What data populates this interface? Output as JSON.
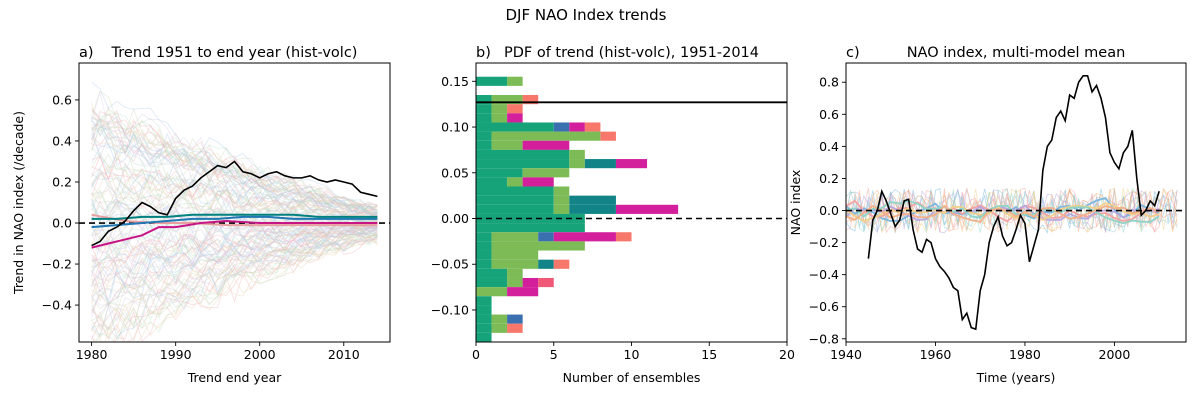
{
  "figure": {
    "title": "DJF NAO Index trends"
  },
  "chart_data": [
    {
      "type": "line",
      "panel_letter": "a)",
      "title": "Trend 1951 to end year (hist-volc)",
      "xlabel": "Trend end year",
      "ylabel": "Trend in NAO index (/decade)",
      "xlim": [
        1978.5,
        2015.5
      ],
      "ylim": [
        -0.58,
        0.78
      ],
      "xticks": [
        1980,
        1990,
        2000,
        2010
      ],
      "yticks": [
        -0.4,
        -0.2,
        0.0,
        0.2,
        0.4,
        0.6
      ],
      "grid": false,
      "ensemble_members": 120,
      "ensemble_color": "#b0b8c8",
      "zero_line": 0,
      "series": [
        {
          "color": "#000000",
          "x": [
            1980,
            1981,
            1982,
            1983,
            1984,
            1985,
            1986,
            1987,
            1988,
            1989,
            1990,
            1991,
            1992,
            1993,
            1994,
            1995,
            1996,
            1997,
            1998,
            1999,
            2000,
            2001,
            2002,
            2003,
            2004,
            2005,
            2006,
            2007,
            2008,
            2009,
            2010,
            2011,
            2012,
            2013,
            2014
          ],
          "values": [
            -0.11,
            -0.09,
            -0.04,
            -0.02,
            0.01,
            0.06,
            0.1,
            0.08,
            0.05,
            0.04,
            0.12,
            0.16,
            0.18,
            0.22,
            0.25,
            0.28,
            0.27,
            0.3,
            0.25,
            0.24,
            0.22,
            0.24,
            0.25,
            0.23,
            0.22,
            0.22,
            0.23,
            0.21,
            0.2,
            0.21,
            0.2,
            0.19,
            0.15,
            0.14,
            0.13
          ]
        },
        {
          "color": "#008080",
          "x": [
            1980,
            1983,
            1986,
            1989,
            1992,
            1995,
            1998,
            2001,
            2004,
            2007,
            2010,
            2014
          ],
          "values": [
            0.02,
            0.02,
            0.03,
            0.03,
            0.04,
            0.04,
            0.04,
            0.04,
            0.04,
            0.03,
            0.03,
            0.03
          ]
        },
        {
          "color": "#1f77b4",
          "x": [
            1980,
            1983,
            1986,
            1989,
            1992,
            1995,
            1998,
            2001,
            2004,
            2007,
            2010,
            2014
          ],
          "values": [
            -0.02,
            -0.01,
            0.0,
            0.01,
            0.02,
            0.02,
            0.03,
            0.03,
            0.02,
            0.02,
            0.02,
            0.02
          ]
        },
        {
          "color": "#c71585",
          "x": [
            1980,
            1982,
            1984,
            1986,
            1988,
            1990,
            1993,
            1996,
            2000,
            2004,
            2008,
            2014
          ],
          "values": [
            -0.12,
            -0.1,
            -0.08,
            -0.06,
            -0.02,
            -0.02,
            0.0,
            0.01,
            0.0,
            0.0,
            0.0,
            0.0
          ]
        },
        {
          "color": "#e8a0a0",
          "x": [
            1980,
            1984,
            1988,
            1992,
            1996,
            2000,
            2004,
            2008,
            2014
          ],
          "values": [
            0.04,
            0.01,
            0.0,
            0.0,
            -0.01,
            -0.01,
            -0.01,
            -0.01,
            -0.01
          ]
        }
      ]
    },
    {
      "type": "bar",
      "orientation": "horizontal",
      "stacked": true,
      "panel_letter": "b)",
      "title": "PDF of trend (hist-volc), 1951-2014",
      "xlabel": "Number of ensembles",
      "ylabel": "",
      "xlim": [
        0,
        20
      ],
      "ylim": [
        -0.135,
        0.17
      ],
      "xticks": [
        0,
        5,
        10,
        15,
        20
      ],
      "yticks": [
        -0.1,
        -0.05,
        0.0,
        0.05,
        0.1,
        0.15
      ],
      "bin_width": 0.01,
      "observed_line": 0.127,
      "zero_line": 0,
      "colors": [
        "#16a37a",
        "#7cbb55",
        "#3a6fb0",
        "#128488",
        "#d31f9c",
        "#ef5977",
        "#f7776b"
      ],
      "bins": [
        {
          "y": 0.15,
          "segments": [
            2,
            1,
            0,
            0,
            0,
            0,
            0
          ]
        },
        {
          "y": 0.13,
          "segments": [
            1,
            2,
            0,
            0,
            0,
            0,
            1
          ]
        },
        {
          "y": 0.12,
          "segments": [
            1,
            1,
            0,
            0,
            0,
            0,
            1
          ]
        },
        {
          "y": 0.11,
          "segments": [
            1,
            1,
            0,
            0,
            1,
            0,
            0
          ]
        },
        {
          "y": 0.1,
          "segments": [
            5,
            0,
            1,
            0,
            1,
            0,
            1
          ]
        },
        {
          "y": 0.09,
          "segments": [
            1,
            7,
            0,
            0,
            0,
            0,
            1
          ]
        },
        {
          "y": 0.08,
          "segments": [
            1,
            2,
            0,
            0,
            3,
            0,
            0
          ]
        },
        {
          "y": 0.07,
          "segments": [
            6,
            1,
            0,
            0,
            0,
            0,
            0
          ]
        },
        {
          "y": 0.06,
          "segments": [
            6,
            1,
            0,
            2,
            2,
            0,
            0
          ]
        },
        {
          "y": 0.05,
          "segments": [
            3,
            3,
            0,
            0,
            0,
            0,
            0
          ]
        },
        {
          "y": 0.04,
          "segments": [
            2,
            1,
            0,
            0,
            2,
            0,
            0
          ]
        },
        {
          "y": 0.03,
          "segments": [
            5,
            1,
            0,
            0,
            0,
            0,
            0
          ]
        },
        {
          "y": 0.02,
          "segments": [
            5,
            1,
            0,
            3,
            0,
            0,
            0
          ]
        },
        {
          "y": 0.01,
          "segments": [
            5,
            1,
            0,
            3,
            4,
            0,
            0
          ]
        },
        {
          "y": 0.0,
          "segments": [
            7,
            0,
            0,
            0,
            0,
            0,
            0
          ]
        },
        {
          "y": -0.01,
          "segments": [
            7,
            0,
            0,
            0,
            0,
            0,
            0
          ]
        },
        {
          "y": -0.02,
          "segments": [
            1,
            3,
            1,
            0,
            4,
            0,
            1
          ]
        },
        {
          "y": -0.03,
          "segments": [
            1,
            6,
            0,
            0,
            0,
            0,
            0
          ]
        },
        {
          "y": -0.04,
          "segments": [
            1,
            3,
            0,
            0,
            0,
            0,
            0
          ]
        },
        {
          "y": -0.05,
          "segments": [
            1,
            3,
            0,
            1,
            0,
            0,
            1
          ]
        },
        {
          "y": -0.06,
          "segments": [
            2,
            1,
            0,
            0,
            0,
            0,
            0
          ]
        },
        {
          "y": -0.07,
          "segments": [
            2,
            1,
            0,
            0,
            1,
            1,
            0
          ]
        },
        {
          "y": -0.08,
          "segments": [
            0,
            2,
            0,
            0,
            2,
            0,
            0
          ]
        },
        {
          "y": -0.09,
          "segments": [
            1,
            0,
            0,
            0,
            0,
            0,
            0
          ]
        },
        {
          "y": -0.1,
          "segments": [
            1,
            0,
            0,
            0,
            0,
            0,
            0
          ]
        },
        {
          "y": -0.11,
          "segments": [
            1,
            1,
            1,
            0,
            0,
            0,
            0
          ]
        },
        {
          "y": -0.12,
          "segments": [
            1,
            1,
            0,
            0,
            0,
            0,
            1
          ]
        },
        {
          "y": -0.13,
          "segments": [
            1,
            0,
            0,
            0,
            0,
            0,
            0
          ]
        }
      ]
    },
    {
      "type": "line",
      "panel_letter": "c)",
      "title": "NAO index, multi-model mean",
      "xlabel": "Time (years)",
      "ylabel": "NAO index",
      "xlim": [
        1940,
        2016
      ],
      "ylim": [
        -0.82,
        0.92
      ],
      "xticks": [
        1940,
        1960,
        1980,
        2000
      ],
      "yticks": [
        -0.8,
        -0.6,
        -0.4,
        -0.2,
        0.0,
        0.2,
        0.4,
        0.6,
        0.8
      ],
      "grid": false,
      "zero_line": 0,
      "series": [
        {
          "color": "#000000",
          "x": [
            1945,
            1946,
            1947,
            1948,
            1949,
            1950,
            1951,
            1952,
            1953,
            1954,
            1955,
            1956,
            1957,
            1958,
            1959,
            1960,
            1961,
            1962,
            1963,
            1964,
            1965,
            1966,
            1967,
            1968,
            1969,
            1970,
            1971,
            1972,
            1973,
            1974,
            1975,
            1976,
            1977,
            1978,
            1979,
            1980,
            1981,
            1982,
            1983,
            1984,
            1985,
            1986,
            1987,
            1988,
            1989,
            1990,
            1991,
            1992,
            1993,
            1994,
            1995,
            1996,
            1997,
            1998,
            1999,
            2000,
            2001,
            2002,
            2003,
            2004,
            2005,
            2006,
            2007,
            2008,
            2009,
            2010
          ],
          "values": [
            -0.3,
            -0.06,
            0.0,
            0.12,
            0.06,
            -0.02,
            -0.1,
            -0.06,
            0.06,
            0.07,
            -0.12,
            -0.24,
            -0.26,
            -0.18,
            -0.2,
            -0.3,
            -0.35,
            -0.38,
            -0.42,
            -0.48,
            -0.5,
            -0.68,
            -0.64,
            -0.73,
            -0.74,
            -0.5,
            -0.4,
            -0.2,
            -0.1,
            -0.04,
            -0.16,
            -0.22,
            -0.2,
            -0.12,
            -0.03,
            -0.08,
            -0.32,
            -0.22,
            -0.12,
            0.25,
            0.4,
            0.44,
            0.58,
            0.62,
            0.56,
            0.72,
            0.7,
            0.8,
            0.84,
            0.84,
            0.74,
            0.78,
            0.7,
            0.58,
            0.36,
            0.3,
            0.26,
            0.36,
            0.4,
            0.5,
            0.2,
            -0.03,
            0.0,
            0.06,
            0.03,
            0.12
          ]
        }
      ],
      "background_series_colors": [
        "#7ab8e0",
        "#f4a3a3",
        "#b8a8e0",
        "#f2d08a",
        "#90d4c8",
        "#f4b088"
      ]
    }
  ]
}
